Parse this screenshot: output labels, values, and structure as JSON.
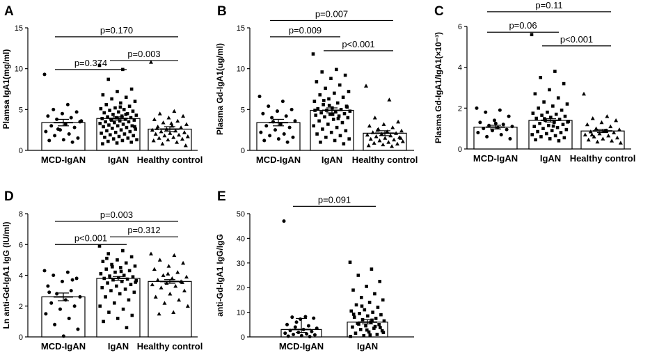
{
  "chart_data": [
    {
      "panel": "A",
      "type": "bar",
      "ylabel": "Plamsa IgA1(mg/ml)",
      "ylim": [
        0,
        15
      ],
      "yticks": [
        "0",
        "5",
        "10",
        "15"
      ],
      "categories": [
        "MCD-IgAN",
        "IgAN",
        "Healthy control"
      ],
      "values": [
        3.4,
        3.9,
        2.6
      ],
      "sem": [
        0.4,
        0.2,
        0.3
      ],
      "markers": [
        "circle",
        "square",
        "triangle"
      ],
      "points": [
        [
          9.3,
          5.6,
          5.0,
          4.7,
          4.5,
          4.2,
          4.0,
          3.8,
          3.5,
          3.2,
          3.0,
          2.8,
          2.5,
          2.3,
          2.0,
          1.8,
          1.5,
          1.3,
          1.2,
          1.0,
          2.6,
          3.6
        ],
        [
          10.4,
          9.9,
          8.7,
          7.5,
          7.2,
          6.8,
          6.5,
          6.3,
          6.0,
          5.8,
          5.6,
          5.4,
          5.2,
          5.1,
          5.0,
          4.9,
          4.8,
          4.7,
          4.6,
          4.5,
          4.4,
          4.3,
          4.2,
          4.1,
          4.0,
          4.0,
          3.9,
          3.8,
          3.8,
          3.7,
          3.6,
          3.5,
          3.5,
          3.4,
          3.3,
          3.2,
          3.1,
          3.0,
          3.0,
          2.9,
          2.8,
          2.7,
          2.6,
          2.5,
          2.4,
          2.3,
          2.2,
          2.1,
          2.0,
          1.9,
          1.8,
          1.7,
          1.6,
          1.5,
          1.4,
          1.3,
          1.2,
          1.1,
          1.0,
          0.9,
          0.8,
          4.4,
          3.7,
          2.9,
          5.3
        ],
        [
          10.8,
          4.8,
          4.5,
          4.2,
          4.0,
          3.8,
          3.6,
          3.4,
          3.2,
          3.0,
          2.9,
          2.8,
          2.6,
          2.5,
          2.4,
          2.3,
          2.2,
          2.1,
          2.0,
          1.9,
          1.8,
          1.7,
          1.6,
          1.5,
          1.4,
          1.3,
          1.2,
          1.0,
          0.8,
          0.6,
          3.3,
          2.7
        ]
      ],
      "comparisons": [
        {
          "from": 0,
          "to": 1,
          "y": 9.9,
          "label": "p=0.374"
        },
        {
          "from": 1,
          "to": 2,
          "y": 11.0,
          "label": "p=0.003"
        },
        {
          "from": 0,
          "to": 2,
          "y": 13.9,
          "label": "p=0.170"
        }
      ]
    },
    {
      "panel": "B",
      "type": "bar",
      "ylabel": "Plasma Gd-IgA1(ug/ml)",
      "ylim": [
        0,
        15
      ],
      "yticks": [
        "0",
        "5",
        "10",
        "15"
      ],
      "categories": [
        "MCD-IgAN",
        "IgAN",
        "Healthy control"
      ],
      "values": [
        3.4,
        4.9,
        2.1
      ],
      "sem": [
        0.4,
        0.3,
        0.3
      ],
      "markers": [
        "circle",
        "square",
        "triangle"
      ],
      "points": [
        [
          6.6,
          6.0,
          5.4,
          5.0,
          4.8,
          4.5,
          4.2,
          4.0,
          3.6,
          3.2,
          3.0,
          2.8,
          2.5,
          2.2,
          2.0,
          1.8,
          1.6,
          1.4,
          1.2,
          1.0,
          3.5
        ],
        [
          11.8,
          9.9,
          9.6,
          9.2,
          8.8,
          8.4,
          8.0,
          7.6,
          7.2,
          7.0,
          6.8,
          6.5,
          6.3,
          6.0,
          5.8,
          5.6,
          5.4,
          5.2,
          5.1,
          5.0,
          4.9,
          4.8,
          4.7,
          4.6,
          4.5,
          4.4,
          4.3,
          4.2,
          4.1,
          4.0,
          3.8,
          3.6,
          3.4,
          3.2,
          3.0,
          2.8,
          2.6,
          2.4,
          2.2,
          2.0,
          1.8,
          1.6,
          1.4,
          1.2,
          1.0,
          0.8,
          5.5,
          4.9,
          3.9,
          6.1,
          5.3,
          4.4
        ],
        [
          7.9,
          6.2,
          4.0,
          3.5,
          3.2,
          3.0,
          2.8,
          2.6,
          2.4,
          2.3,
          2.2,
          2.1,
          2.0,
          1.9,
          1.8,
          1.7,
          1.6,
          1.5,
          1.4,
          1.3,
          1.2,
          1.1,
          1.0,
          0.9,
          0.8,
          0.7,
          0.6,
          0.5,
          2.5,
          1.5
        ]
      ],
      "comparisons": [
        {
          "from": 0,
          "to": 1,
          "y": 13.9,
          "label": "p=0.009"
        },
        {
          "from": 1,
          "to": 2,
          "y": 12.2,
          "label": "p<0.001"
        },
        {
          "from": 0,
          "to": 2,
          "y": 15.9,
          "label": "p=0.007"
        }
      ]
    },
    {
      "panel": "C",
      "type": "bar",
      "ylabel": "Plasma Gd-IgA1/IgA1(×10⁻³)",
      "ylim": [
        0,
        6
      ],
      "yticks": [
        "0",
        "2",
        "4",
        "6"
      ],
      "categories": [
        "MCD-IgAN",
        "IgAN",
        "Healthy control"
      ],
      "values": [
        1.07,
        1.4,
        0.88
      ],
      "sem": [
        0.09,
        0.08,
        0.08
      ],
      "markers": [
        "circle",
        "square",
        "triangle"
      ],
      "points": [
        [
          2.0,
          1.9,
          1.8,
          1.6,
          1.4,
          1.3,
          1.2,
          1.15,
          1.1,
          1.05,
          1.0,
          0.95,
          0.9,
          0.8,
          0.7,
          0.6,
          0.5,
          1.25
        ],
        [
          5.6,
          3.8,
          3.5,
          3.2,
          2.9,
          2.7,
          2.5,
          2.3,
          2.2,
          2.1,
          2.0,
          1.9,
          1.8,
          1.75,
          1.7,
          1.65,
          1.6,
          1.55,
          1.5,
          1.45,
          1.4,
          1.35,
          1.3,
          1.25,
          1.2,
          1.15,
          1.1,
          1.05,
          1.0,
          0.95,
          0.9,
          0.85,
          0.8,
          0.75,
          0.7,
          0.65,
          0.6,
          0.55,
          0.5,
          0.45,
          0.4,
          1.48,
          1.32,
          1.12
        ],
        [
          2.7,
          1.6,
          1.5,
          1.4,
          1.3,
          1.2,
          1.1,
          1.0,
          0.95,
          0.9,
          0.85,
          0.8,
          0.75,
          0.7,
          0.65,
          0.6,
          0.55,
          0.5,
          0.45,
          0.4,
          0.35,
          0.3,
          0.9,
          0.7
        ]
      ],
      "comparisons": [
        {
          "from": 0,
          "to": 1,
          "y": 5.72,
          "label": "p=0.06"
        },
        {
          "from": 1,
          "to": 2,
          "y": 5.05,
          "label": "p<0.001"
        },
        {
          "from": 0,
          "to": 2,
          "y": 6.72,
          "label": "p=0.11"
        }
      ]
    },
    {
      "panel": "D",
      "type": "bar",
      "ylabel": "Ln anti-Gd-IgA1 IgG (IU/ml)",
      "ylim": [
        0,
        8
      ],
      "yticks": [
        "0",
        "2",
        "4",
        "6",
        "8"
      ],
      "categories": [
        "MCD-IgAN",
        "IgAN",
        "Healthy control"
      ],
      "values": [
        2.6,
        3.8,
        3.6
      ],
      "sem": [
        0.25,
        0.12,
        0.12
      ],
      "markers": [
        "circle",
        "square",
        "triangle"
      ],
      "points": [
        [
          4.3,
          4.2,
          4.0,
          3.8,
          3.6,
          3.3,
          3.0,
          2.8,
          2.6,
          2.4,
          2.2,
          2.0,
          1.8,
          1.5,
          1.2,
          0.8,
          0.5,
          0.05,
          2.9,
          3.7
        ],
        [
          5.9,
          5.6,
          5.4,
          5.2,
          5.0,
          4.9,
          4.8,
          4.7,
          4.6,
          4.5,
          4.4,
          4.3,
          4.2,
          4.1,
          4.0,
          3.95,
          3.9,
          3.85,
          3.8,
          3.75,
          3.7,
          3.65,
          3.6,
          3.5,
          3.4,
          3.3,
          3.2,
          3.1,
          3.0,
          2.9,
          2.8,
          2.6,
          2.4,
          2.2,
          2.0,
          1.8,
          1.6,
          1.4,
          1.2,
          1.0,
          0.6,
          4.55,
          3.55,
          4.25,
          5.1
        ],
        [
          5.4,
          5.3,
          5.0,
          4.8,
          4.6,
          4.4,
          4.2,
          4.0,
          3.9,
          3.8,
          3.7,
          3.6,
          3.5,
          3.4,
          3.3,
          3.2,
          3.0,
          2.8,
          2.6,
          2.4,
          2.2,
          2.0,
          1.6,
          1.5,
          3.55,
          4.1
        ]
      ],
      "comparisons": [
        {
          "from": 0,
          "to": 1,
          "y": 6.0,
          "label": "p<0.001"
        },
        {
          "from": 1,
          "to": 2,
          "y": 6.5,
          "label": "p=0.312"
        },
        {
          "from": 0,
          "to": 2,
          "y": 7.5,
          "label": "p=0.003"
        }
      ]
    },
    {
      "panel": "E",
      "type": "bar",
      "ylabel": "anti-Gd-IgA1 IgG/IgG",
      "ylim": [
        0,
        50
      ],
      "yticks": [
        "0",
        "10",
        "20",
        "30",
        "40",
        "50"
      ],
      "categories": [
        "MCD-IgAN",
        "IgAN"
      ],
      "values": [
        3.0,
        6.0
      ],
      "sem": [
        1.2,
        0.7
      ],
      "whisker_top": [
        7.5,
        7.0
      ],
      "markers": [
        "circle",
        "square"
      ],
      "points": [
        [
          47.0,
          8.2,
          8.0,
          7.6,
          7.2,
          5.0,
          4.5,
          4.0,
          3.5,
          3.0,
          2.6,
          2.2,
          1.8,
          1.5,
          1.2,
          1.0,
          0.8,
          0.5,
          0.3,
          0.1,
          6.0
        ],
        [
          30.3,
          27.5,
          25.0,
          22.5,
          20.5,
          19.0,
          17.5,
          16.0,
          15.0,
          14.0,
          13.0,
          12.0,
          11.0,
          10.5,
          10.0,
          9.5,
          9.0,
          8.5,
          8.0,
          7.5,
          7.0,
          6.5,
          6.0,
          5.5,
          5.0,
          4.5,
          4.0,
          3.5,
          3.0,
          2.5,
          2.0,
          1.5,
          1.0,
          0.5,
          0.2,
          6.8,
          5.2,
          3.8,
          2.8,
          9.2,
          4.2,
          12.5,
          1.8,
          0.8
        ]
      ],
      "comparisons": [
        {
          "from": 0,
          "to": 1,
          "y": 53.0,
          "label": "p=0.091"
        }
      ]
    }
  ]
}
